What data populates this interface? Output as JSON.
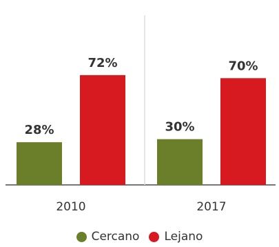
{
  "chart_data": {
    "type": "bar",
    "categories": [
      "2010",
      "2017"
    ],
    "series": [
      {
        "name": "Cercano",
        "values": [
          28,
          30
        ],
        "color": "#6b7f2a"
      },
      {
        "name": "Lejano",
        "values": [
          72,
          70
        ],
        "color": "#d71920"
      }
    ],
    "value_labels": [
      [
        "28%",
        "30%"
      ],
      [
        "72%",
        "70%"
      ]
    ],
    "ylim": [
      0,
      100
    ],
    "grid": false,
    "legend_position": "bottom-center"
  },
  "legend": {
    "items": [
      {
        "label": "Cercano",
        "color": "#6b7f2a"
      },
      {
        "label": "Lejano",
        "color": "#d71920"
      }
    ]
  }
}
